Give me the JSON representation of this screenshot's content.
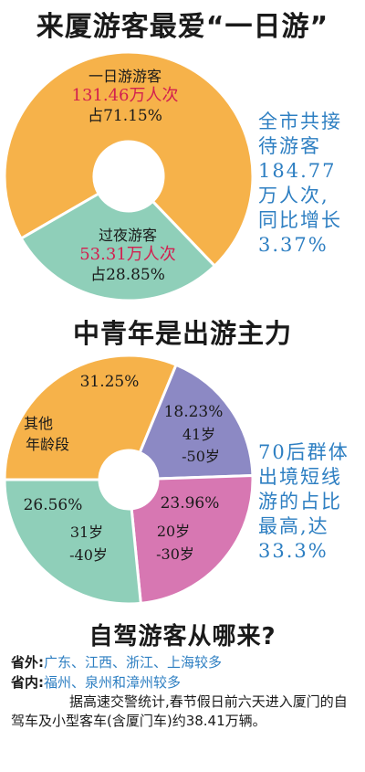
{
  "titles": {
    "first": "来厦游客最爱“一日游”",
    "second": "中青年是出游主力",
    "third": "自驾游客从哪来?"
  },
  "chart_data": [
    {
      "type": "pie",
      "title": "来厦游客最爱“一日游”",
      "slices": [
        {
          "label": "一日游游客",
          "value_text": "131.46万人次",
          "share_text": "占71.15%",
          "value": 131.46,
          "share": 71.15,
          "color": "#f6b24a"
        },
        {
          "label": "过夜游客",
          "value_text": "53.31万人次",
          "share_text": "占28.85%",
          "value": 53.31,
          "share": 28.85,
          "color": "#8fcfb9"
        }
      ],
      "annotation": [
        "全市共接",
        "待游客",
        "184.77",
        "万人次,",
        "同比增长",
        "3.37%"
      ]
    },
    {
      "type": "pie",
      "title": "中青年是出游主力",
      "slices": [
        {
          "share_text": "31.25%",
          "labels": [
            "其他",
            "年龄段"
          ],
          "share": 31.25,
          "color": "#f6b24a"
        },
        {
          "share_text": "18.23%",
          "labels": [
            "41岁",
            "-50岁"
          ],
          "share": 18.23,
          "color": "#8c89c4"
        },
        {
          "share_text": "23.96%",
          "labels": [
            "20岁",
            "-30岁"
          ],
          "share": 23.96,
          "color": "#d777b2"
        },
        {
          "share_text": "26.56%",
          "labels": [
            "31岁",
            "-40岁"
          ],
          "share": 26.56,
          "color": "#8fcfb9"
        }
      ],
      "annotation": [
        "70后群体",
        "出境短线",
        "游的占比",
        "最高,达",
        "33.3%"
      ]
    }
  ],
  "footer": {
    "outside_label": "省外:",
    "outside_text": "广东、江西、浙江、上海较多",
    "inside_label": "省内:",
    "inside_text": "福州、泉州和漳州较多",
    "paragraph": "据高速交警统计,春节假日前六天进入厦门的自驾车及小型客车(含厦门车)约38.41万辆。"
  }
}
